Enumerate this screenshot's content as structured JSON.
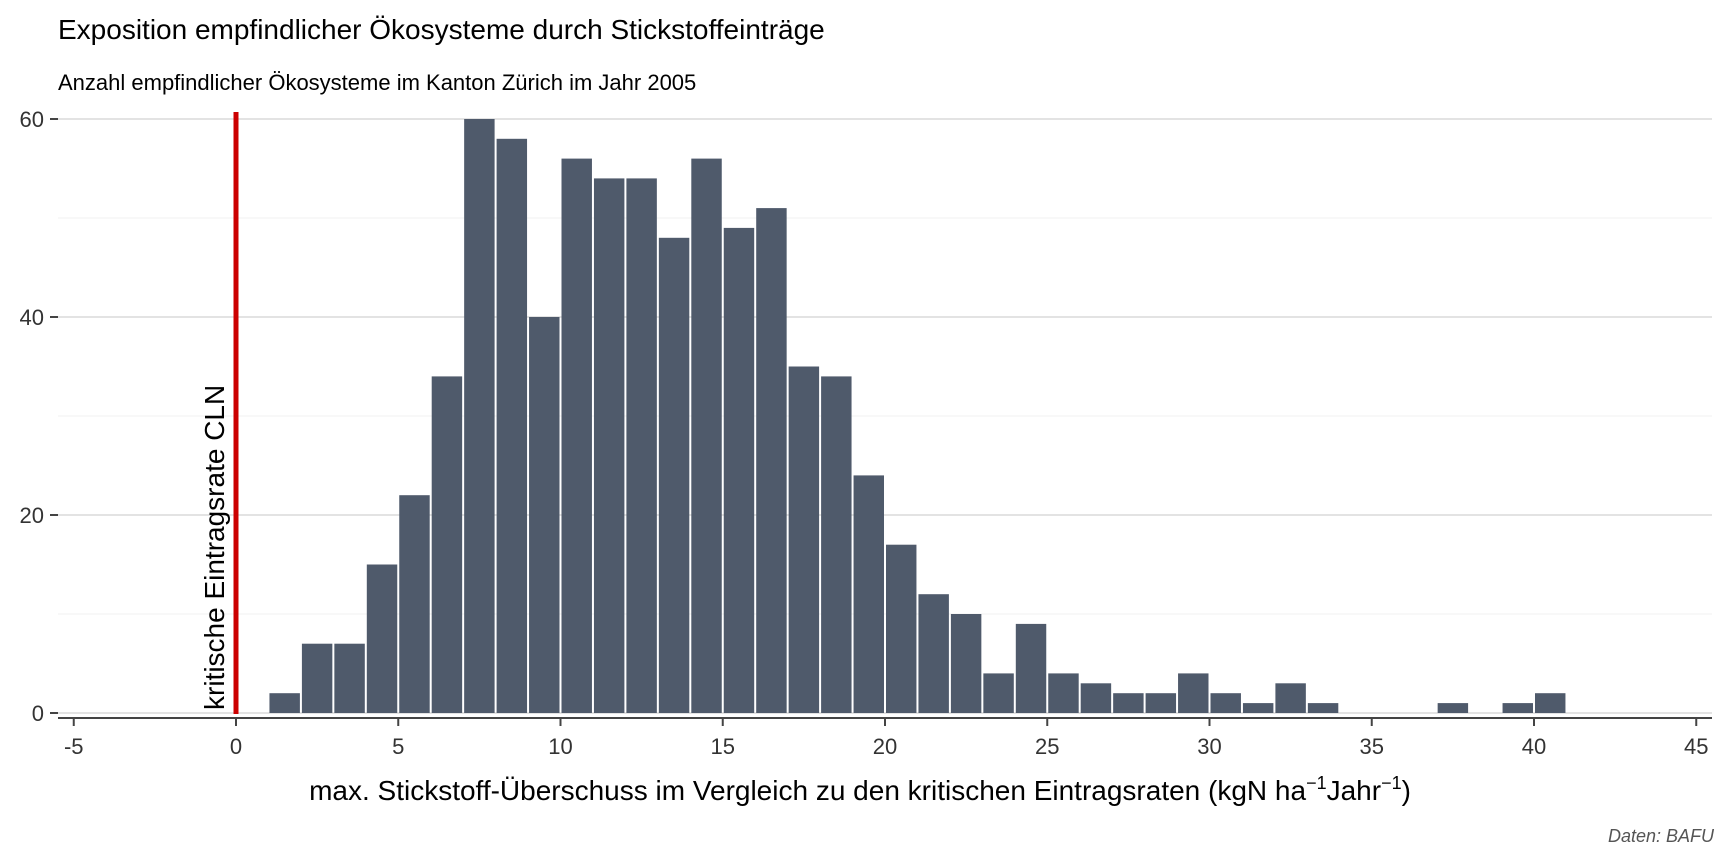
{
  "title": "Exposition empfindlicher Ökosysteme durch Stickstoffeinträge",
  "subtitle": "Anzahl empfindlicher Ökosysteme im Kanton Zürich im Jahr 2005",
  "caption": "Daten: BAFU",
  "chart_data": {
    "type": "bar",
    "title": "Exposition empfindlicher Ökosysteme durch Stickstoffeinträge",
    "subtitle": "Anzahl empfindlicher Ökosysteme im Kanton Zürich im Jahr 2005",
    "xlabel": {
      "main": "max. Stickstoff-Überschuss im Vergleich zu den kritischen Eintragsraten (kgN ha",
      "sup1": "−1",
      "mid": "Jahr",
      "sup2": "−1",
      "end": ")"
    },
    "ylabel": "",
    "xlim": [
      -5,
      45
    ],
    "ylim": [
      0,
      60
    ],
    "x_ticks": [
      -5,
      0,
      5,
      10,
      15,
      20,
      25,
      30,
      35,
      40,
      45
    ],
    "y_ticks": [
      0,
      20,
      40,
      60
    ],
    "grid": true,
    "bin_width": 1,
    "bar_color": "#4f5a6b",
    "x": [
      1.5,
      2.5,
      3.5,
      4.5,
      5.5,
      6.5,
      7.5,
      8.5,
      9.5,
      10.5,
      11.5,
      12.5,
      13.5,
      14.5,
      15.5,
      16.5,
      17.5,
      18.5,
      19.5,
      20.5,
      21.5,
      22.5,
      23.5,
      24.5,
      25.5,
      26.5,
      27.5,
      28.5,
      29.5,
      30.5,
      31.5,
      32.5,
      33.5,
      37.5,
      39.5,
      40.5
    ],
    "values": [
      2,
      7,
      7,
      15,
      22,
      34,
      60,
      58,
      40,
      56,
      54,
      54,
      48,
      56,
      49,
      51,
      35,
      34,
      24,
      17,
      12,
      10,
      4,
      9,
      4,
      3,
      2,
      2,
      4,
      2,
      1,
      3,
      1,
      1,
      1,
      2
    ],
    "reference_line": {
      "x": 0,
      "color": "#cc0000",
      "label": "kritische Eintragsrate CLN"
    }
  }
}
